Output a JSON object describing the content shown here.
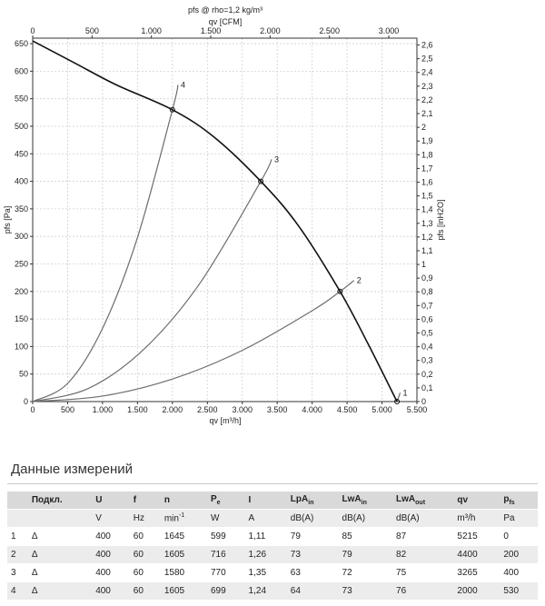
{
  "chart_data": {
    "type": "line",
    "title": "pfs @ rho=1,2 kg/m³",
    "x_bottom": {
      "label": "qv [m³/h]",
      "range": [
        0,
        5500
      ],
      "ticks": [
        "0",
        "500",
        "1.000",
        "1.500",
        "2.000",
        "2.500",
        "3.000",
        "3.500",
        "4.000",
        "4.500",
        "5.000",
        "5.500"
      ]
    },
    "x_top": {
      "label": "qv [CFM]",
      "range": [
        0,
        3237
      ],
      "ticks": [
        "0",
        "500",
        "1.000",
        "1.500",
        "2.000",
        "2.500",
        "3.000"
      ]
    },
    "y_left": {
      "label": "pfs [Pa]",
      "range": [
        0,
        660
      ],
      "ticks": [
        "0",
        "50",
        "100",
        "150",
        "200",
        "250",
        "300",
        "350",
        "400",
        "450",
        "500",
        "550",
        "600",
        "650"
      ]
    },
    "y_right": {
      "label": "pfs [inH2O]",
      "range": [
        0,
        2.65
      ],
      "ticks": [
        "0",
        "0,1",
        "0,2",
        "0,3",
        "0,4",
        "0,5",
        "0,6",
        "0,7",
        "0,8",
        "0,9",
        "1",
        "1,1",
        "1,2",
        "1,3",
        "1,4",
        "1,5",
        "1,6",
        "1,7",
        "1,8",
        "1,9",
        "2",
        "2,1",
        "2,2",
        "2,3",
        "2,4",
        "2,5",
        "2,6"
      ]
    },
    "grid": true,
    "fan_curve": {
      "x": [
        0,
        600,
        1200,
        2000,
        2600,
        3265,
        3800,
        4400,
        4800,
        5215
      ],
      "y": [
        655,
        615,
        575,
        530,
        480,
        400,
        320,
        200,
        105,
        0
      ]
    },
    "system_curves": [
      {
        "label": "1",
        "x": [
          5215,
          5260
        ],
        "y": [
          0,
          16
        ]
      },
      {
        "label": "2",
        "x": [
          0,
          1000,
          2000,
          3000,
          4000,
          4400,
          4600
        ],
        "y": [
          0,
          10,
          41,
          93,
          165,
          200,
          220
        ]
      },
      {
        "label": "3",
        "x": [
          0,
          800,
          1600,
          2400,
          3265,
          3420
        ],
        "y": [
          0,
          24,
          96,
          216,
          400,
          440
        ]
      },
      {
        "label": "4",
        "x": [
          0,
          500,
          1000,
          1500,
          2000,
          2080
        ],
        "y": [
          0,
          33,
          133,
          298,
          530,
          575
        ]
      }
    ],
    "operating_points": [
      {
        "label": "1",
        "x": 5215,
        "y": 0
      },
      {
        "label": "2",
        "x": 4400,
        "y": 200
      },
      {
        "label": "3",
        "x": 3265,
        "y": 400
      },
      {
        "label": "4",
        "x": 2000,
        "y": 530
      }
    ]
  },
  "table": {
    "title": "Данные измерений",
    "headers": [
      {
        "main": "",
        "sub": "",
        "sup": ""
      },
      {
        "main": "Подкл.",
        "sub": "",
        "sup": ""
      },
      {
        "main": "U",
        "sub": "",
        "sup": ""
      },
      {
        "main": "f",
        "sub": "",
        "sup": ""
      },
      {
        "main": "n",
        "sub": "",
        "sup": ""
      },
      {
        "main": "P",
        "sub": "e",
        "sup": ""
      },
      {
        "main": "I",
        "sub": "",
        "sup": ""
      },
      {
        "main": "LpA",
        "sub": "in",
        "sup": ""
      },
      {
        "main": "LwA",
        "sub": "in",
        "sup": ""
      },
      {
        "main": "LwA",
        "sub": "out",
        "sup": ""
      },
      {
        "main": "qv",
        "sub": "",
        "sup": ""
      },
      {
        "main": "p",
        "sub": "fs",
        "sup": ""
      }
    ],
    "units": [
      {
        "main": "",
        "sup": ""
      },
      {
        "main": "",
        "sup": ""
      },
      {
        "main": "V",
        "sup": ""
      },
      {
        "main": "Hz",
        "sup": ""
      },
      {
        "main": "min",
        "sup": "-1"
      },
      {
        "main": "W",
        "sup": ""
      },
      {
        "main": "A",
        "sup": ""
      },
      {
        "main": "dB(A)",
        "sup": ""
      },
      {
        "main": "dB(A)",
        "sup": ""
      },
      {
        "main": "dB(A)",
        "sup": ""
      },
      {
        "main": "m³/h",
        "sup": ""
      },
      {
        "main": "Pa",
        "sup": ""
      }
    ],
    "rows": [
      [
        "1",
        "Δ",
        "400",
        "60",
        "1645",
        "599",
        "1,11",
        "79",
        "85",
        "87",
        "5215",
        "0"
      ],
      [
        "2",
        "Δ",
        "400",
        "60",
        "1605",
        "716",
        "1,26",
        "73",
        "79",
        "82",
        "4400",
        "200"
      ],
      [
        "3",
        "Δ",
        "400",
        "60",
        "1580",
        "770",
        "1,35",
        "63",
        "72",
        "75",
        "3265",
        "400"
      ],
      [
        "4",
        "Δ",
        "400",
        "60",
        "1605",
        "699",
        "1,24",
        "64",
        "73",
        "76",
        "2000",
        "530"
      ]
    ]
  }
}
